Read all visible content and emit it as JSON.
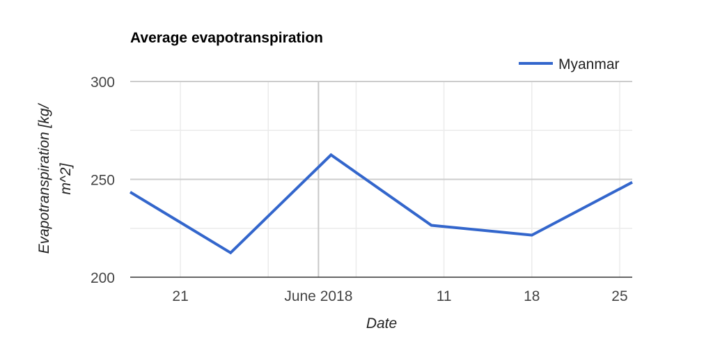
{
  "chart_data": {
    "type": "line",
    "title": "Average evapotranspiration",
    "xlabel": "Date",
    "ylabel_lines": [
      "Evapotranspiration [kg/",
      "m^2]"
    ],
    "x": [
      "2018-05-17",
      "2018-05-25",
      "2018-06-02",
      "2018-06-10",
      "2018-06-18",
      "2018-06-26"
    ],
    "x_range": [
      "2018-05-17",
      "2018-06-26"
    ],
    "x_ticks": [
      {
        "date": "2018-05-21",
        "label": "21",
        "major": false
      },
      {
        "date": "2018-06-01",
        "label": "June 2018",
        "major": true
      },
      {
        "date": "2018-06-11",
        "label": "11",
        "major": false
      },
      {
        "date": "2018-06-18",
        "label": "18",
        "major": false
      },
      {
        "date": "2018-06-25",
        "label": "25",
        "major": false
      }
    ],
    "x_minor_gridlines": [
      "2018-05-28",
      "2018-06-04"
    ],
    "series": [
      {
        "name": "Myanmar",
        "color": "#3366cc",
        "values": [
          243.5,
          212.5,
          262.5,
          226.5,
          221.5,
          248.5
        ]
      }
    ],
    "ylim": [
      200,
      300
    ],
    "y_ticks": [
      200,
      250,
      300
    ],
    "y_minor_ticks": [
      225,
      275
    ],
    "grid": true,
    "legend_position": "top-right"
  }
}
